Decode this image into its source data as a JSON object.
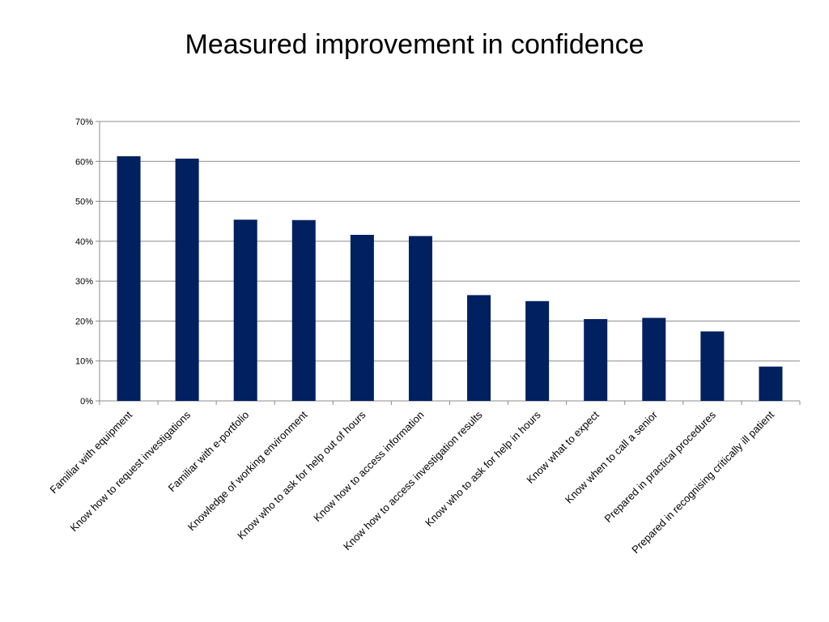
{
  "chart_data": {
    "type": "bar",
    "title": "Measured improvement in confidence",
    "xlabel": "",
    "ylabel": "",
    "ylim": [
      0,
      70
    ],
    "y_ticks": [
      "0%",
      "10%",
      "20%",
      "30%",
      "40%",
      "50%",
      "60%",
      "70%"
    ],
    "grid": true,
    "legend": "none",
    "bar_color": "#002060",
    "categories": [
      "Familiar with equipment",
      "Know how to request investigations",
      "Familiar with e-portfolio",
      "Knowledge of working environment",
      "Know who to ask for help out of hours",
      "Know how to access information",
      "Know how to access investigation results",
      "Know who to ask for help in hours",
      "Know what to expect",
      "Know when to call a senior",
      "Prepared in practical procedures",
      "Prepared in recognising critically ill patient"
    ],
    "values": [
      61.3,
      60.7,
      45.4,
      45.3,
      41.6,
      41.3,
      26.5,
      25.0,
      20.5,
      20.8,
      17.4,
      8.6
    ]
  }
}
